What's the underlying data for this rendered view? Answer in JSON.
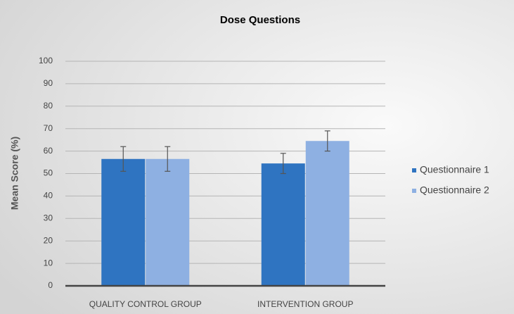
{
  "chart_data": {
    "type": "bar",
    "title": "Dose Questions",
    "y_label": "Mean Score (%)",
    "categories": [
      "QUALITY CONTROL GROUP",
      "INTERVENTION GROUP"
    ],
    "series": [
      {
        "name": "Questionnaire 1",
        "color": "#2f74c1",
        "values": [
          56.5,
          54.5
        ],
        "errors": [
          5.5,
          4.5
        ]
      },
      {
        "name": "Questionnaire 2",
        "color": "#8eb0e2",
        "values": [
          56.5,
          64.5
        ],
        "errors": [
          5.5,
          4.5
        ]
      }
    ],
    "ylim": [
      0,
      100
    ],
    "yticks": [
      0,
      10,
      20,
      30,
      40,
      50,
      60,
      70,
      80,
      90,
      100
    ],
    "grid": true,
    "legend": "right"
  }
}
